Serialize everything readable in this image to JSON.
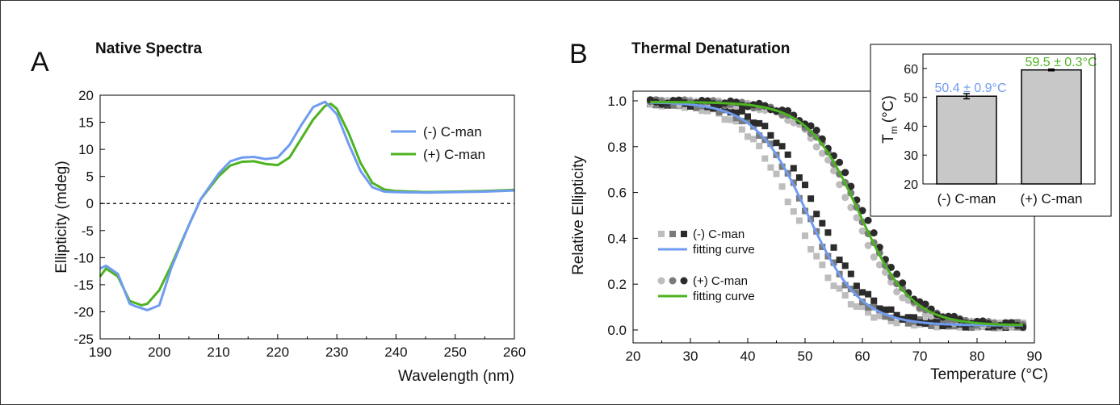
{
  "colors": {
    "minus": "#6f9cf0",
    "plus": "#4db320",
    "bar": "#c8c8c8",
    "dark": "#2b2b2b",
    "mid": "#7a7a7a",
    "light": "#bdbdbd"
  },
  "chart_data": [
    {
      "panel": "A",
      "type": "line",
      "title": "Native Spectra",
      "xlabel": "Wavelength (nm)",
      "ylabel": "Ellipticity (mdeg)",
      "xlim": [
        190,
        260
      ],
      "ylim": [
        -25,
        20
      ],
      "xticks": [
        "190",
        "200",
        "210",
        "220",
        "230",
        "240",
        "250",
        "260"
      ],
      "yticks": [
        "20",
        "15",
        "10",
        "5",
        "0",
        "-5",
        "-10",
        "-15",
        "-20",
        "-25"
      ],
      "legend": [
        "(-) C-man",
        "(+) C-man"
      ],
      "series": [
        {
          "name": "(-) C-man",
          "x": [
            190,
            191,
            193,
            195,
            196,
            198,
            200,
            202,
            205,
            207,
            210,
            212,
            214,
            216,
            218,
            220,
            222,
            224,
            226,
            228,
            230,
            232,
            234,
            236,
            238,
            240,
            245,
            250,
            255,
            260
          ],
          "y": [
            -12,
            -11.5,
            -13,
            -18.5,
            -19,
            -19.7,
            -18.8,
            -12,
            -4,
            0.8,
            5.5,
            7.8,
            8.5,
            8.6,
            8.2,
            8.5,
            10.8,
            14.5,
            17.8,
            18.8,
            16.5,
            11,
            6,
            3,
            2.2,
            2.1,
            2.0,
            2.1,
            2.2,
            2.4
          ]
        },
        {
          "name": "(+) C-man",
          "x": [
            190,
            191,
            193,
            195,
            197,
            198,
            200,
            202,
            205,
            207,
            210,
            212,
            214,
            216,
            218,
            220,
            222,
            224,
            226,
            228,
            229,
            230,
            232,
            234,
            236,
            238,
            240,
            245,
            250,
            255,
            260
          ],
          "y": [
            -13.5,
            -12,
            -13.5,
            -18,
            -18.8,
            -18.5,
            -16,
            -11.5,
            -4,
            0.8,
            5,
            7,
            7.7,
            7.8,
            7.3,
            7.1,
            8.5,
            12,
            15.5,
            18,
            18.4,
            17.5,
            13,
            7.5,
            3.8,
            2.6,
            2.3,
            2.1,
            2.2,
            2.3,
            2.5
          ]
        }
      ]
    },
    {
      "panel": "B",
      "type": "scatter",
      "title": "Thermal Denaturation",
      "xlabel": "Temperature (°C)",
      "ylabel": "Relative Ellipticity",
      "xlim": [
        20,
        90
      ],
      "ylim": [
        0,
        1.05
      ],
      "xticks": [
        "20",
        "30",
        "40",
        "50",
        "60",
        "70",
        "80",
        "90"
      ],
      "yticks": [
        "1.0",
        "0.8",
        "0.6",
        "0.4",
        "0.2",
        "0.0"
      ],
      "legend": [
        "(-) C-man",
        "fitting curve",
        "(+) C-man",
        "fitting curve"
      ],
      "fits": [
        {
          "name": "(-) C-man",
          "tm": 50.4,
          "width": 4.6,
          "top": 0.995,
          "bottom": 0.02
        },
        {
          "name": "(+) C-man",
          "tm": 59.5,
          "width": 4.5,
          "top": 0.995,
          "bottom": 0.02
        }
      ],
      "scatter_x_range": [
        23,
        88
      ],
      "scatter_step": 1
    },
    {
      "panel": "B-inset",
      "type": "bar",
      "ylabel": "T",
      "ylabel_sub": "m",
      "ylabel_unit": "(°C)",
      "ylim": [
        20,
        65
      ],
      "yticks": [
        "60",
        "50",
        "40",
        "30",
        "20"
      ],
      "categories": [
        "(-) C-man",
        "(+) C-man"
      ],
      "values": [
        50.4,
        59.5
      ],
      "errors": [
        0.9,
        0.3
      ],
      "value_labels": [
        "50.4 ± 0.9°C",
        "59.5 ± 0.3°C"
      ]
    }
  ],
  "panel_letters": {
    "a": "A",
    "b": "B"
  }
}
